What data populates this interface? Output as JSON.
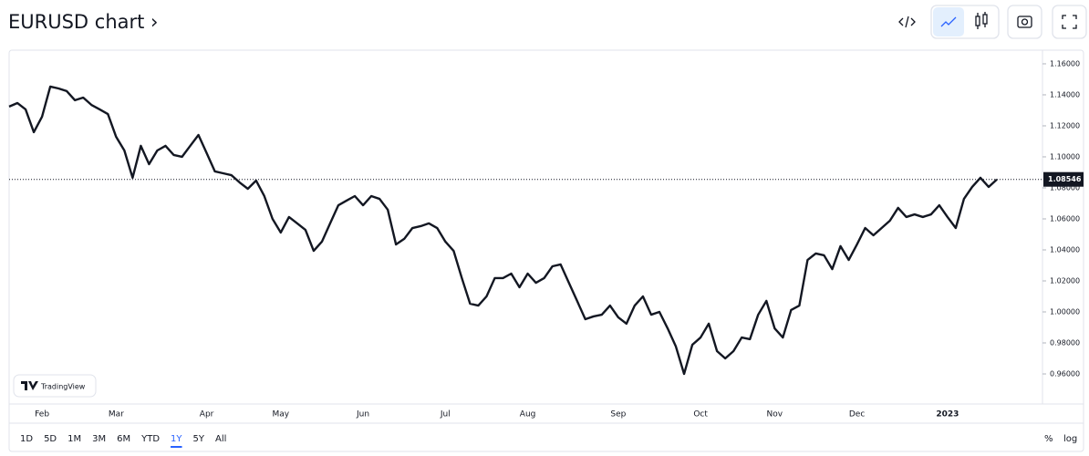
{
  "chart_data": {
    "type": "line",
    "title": "EURUSD chart ›",
    "categories": [
      null,
      null,
      null,
      null,
      "Feb",
      null,
      null,
      null,
      null,
      null,
      null,
      null,
      null,
      "Mar",
      null,
      null,
      null,
      null,
      null,
      null,
      null,
      null,
      null,
      null,
      "Apr",
      null,
      null,
      null,
      null,
      null,
      null,
      null,
      null,
      "May",
      null,
      null,
      null,
      null,
      null,
      null,
      null,
      null,
      null,
      "Jun",
      null,
      null,
      null,
      null,
      null,
      null,
      null,
      null,
      null,
      "Jul",
      null,
      null,
      null,
      null,
      null,
      null,
      null,
      null,
      null,
      "Aug",
      null,
      null,
      null,
      null,
      null,
      null,
      null,
      null,
      null,
      null,
      "Sep",
      null,
      null,
      null,
      null,
      null,
      null,
      null,
      null,
      null,
      "Oct",
      null,
      null,
      null,
      null,
      null,
      null,
      null,
      null,
      "Nov",
      null,
      null,
      null,
      null,
      null,
      null,
      null,
      null,
      null,
      "Dec",
      null,
      null,
      null,
      null,
      null,
      null,
      null,
      null,
      null,
      null,
      "2023",
      null,
      null,
      null,
      null,
      null,
      null
    ],
    "series": [
      {
        "name": "EURUSD",
        "color": "#131722",
        "values": [
          1.1324,
          1.1347,
          1.1306,
          1.1159,
          1.1259,
          1.1453,
          1.1441,
          1.1424,
          1.1365,
          1.1382,
          1.1335,
          1.1306,
          1.1276,
          1.1129,
          1.1041,
          1.0865,
          1.1071,
          1.0953,
          1.1041,
          1.1071,
          1.1012,
          1.1,
          1.1071,
          1.1141,
          1.1024,
          1.0906,
          1.0894,
          1.0882,
          1.0835,
          1.0794,
          1.0847,
          1.0747,
          1.06,
          1.0512,
          1.0612,
          1.0571,
          1.0529,
          1.0394,
          1.0453,
          1.0571,
          1.0688,
          1.0718,
          1.0747,
          1.0688,
          1.0747,
          1.0729,
          1.0659,
          1.0435,
          1.0471,
          1.0541,
          1.0553,
          1.0571,
          1.0541,
          1.0453,
          1.0394,
          1.0218,
          1.0053,
          1.0041,
          1.01,
          1.0218,
          1.0218,
          1.0247,
          1.0159,
          1.0247,
          1.0188,
          1.0218,
          1.0294,
          1.0306,
          1.0188,
          1.0071,
          0.9953,
          0.9971,
          0.9982,
          1.0041,
          0.9965,
          0.9924,
          1.0041,
          1.01,
          0.9982,
          1.0,
          0.9894,
          0.9777,
          0.96,
          0.9788,
          0.9835,
          0.9924,
          0.9747,
          0.97,
          0.9747,
          0.9835,
          0.9824,
          0.9982,
          1.0071,
          0.9894,
          0.9835,
          1.0012,
          1.0041,
          1.0335,
          1.0377,
          1.0365,
          1.0276,
          1.0424,
          1.0335,
          1.0435,
          1.0541,
          1.0494,
          1.0541,
          1.0588,
          1.0671,
          1.0612,
          1.0629,
          1.0612,
          1.0629,
          1.0688,
          1.0612,
          1.0541,
          1.0729,
          1.0806,
          1.0865,
          1.0806,
          1.08546
        ]
      }
    ],
    "ylim": [
      0.9406,
      1.1688
    ],
    "yticks": [
      {
        "value": 0.96,
        "label": "0.96000"
      },
      {
        "value": 0.98,
        "label": "0.98000"
      },
      {
        "value": 1.0,
        "label": "1.00000"
      },
      {
        "value": 1.02,
        "label": "1.02000"
      },
      {
        "value": 1.04,
        "label": "1.04000"
      },
      {
        "value": 1.06,
        "label": "1.06000"
      },
      {
        "value": 1.08,
        "label": "1.08000"
      },
      {
        "value": 1.1,
        "label": "1.10000"
      },
      {
        "value": 1.12,
        "label": "1.12000"
      },
      {
        "value": 1.14,
        "label": "1.14000"
      },
      {
        "value": 1.16,
        "label": "1.16000"
      }
    ],
    "grid": false
  },
  "watermark": "TradingView",
  "range_buttons": [
    "1D",
    "5D",
    "1M",
    "3M",
    "6M",
    "YTD",
    "1Y",
    "5Y",
    "All"
  ],
  "scale_buttons": [
    "%",
    "log"
  ]
}
